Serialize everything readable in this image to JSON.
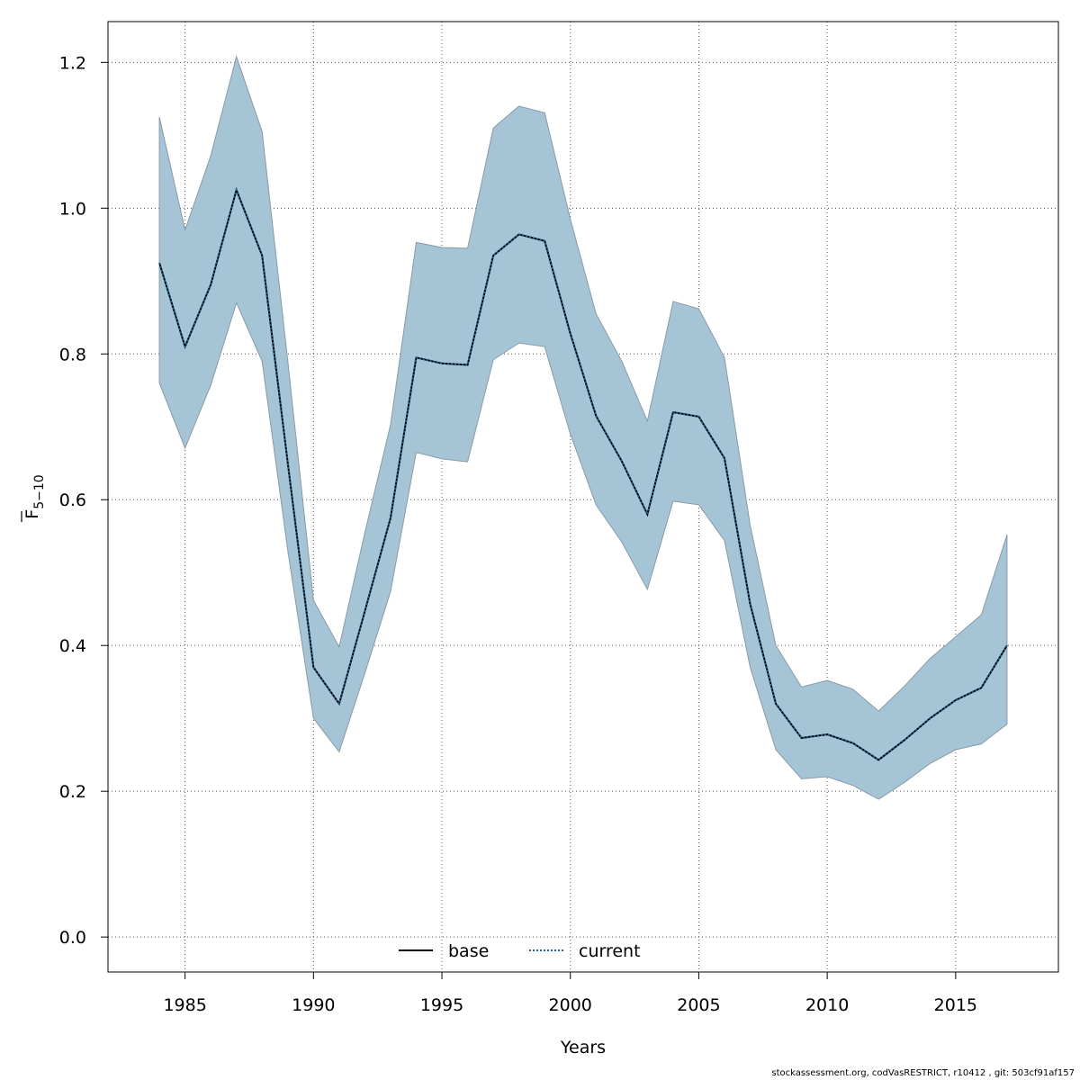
{
  "chart_data": {
    "type": "line",
    "xlabel": "Years",
    "ylabel_main": "F",
    "ylabel_sub": "5−10",
    "xlim": [
      1982,
      2019
    ],
    "ylim": [
      -0.048,
      1.256
    ],
    "x_ticks": [
      1985,
      1990,
      1995,
      2000,
      2005,
      2010,
      2015
    ],
    "y_ticks": [
      0.0,
      0.2,
      0.4,
      0.6,
      0.8,
      1.0,
      1.2
    ],
    "y_tick_labels": [
      "0.0",
      "0.2",
      "0.4",
      "0.6",
      "0.8",
      "1.0",
      "1.2"
    ],
    "grid": true,
    "legend_position": "bottom-center",
    "band_color": "#a5c4d6",
    "band_stroke": "#8a9aa6",
    "x": [
      1984,
      1985,
      1986,
      1987,
      1988,
      1989,
      1990,
      1991,
      1992,
      1993,
      1994,
      1995,
      1996,
      1997,
      1998,
      1999,
      2000,
      2001,
      2002,
      2003,
      2004,
      2005,
      2006,
      2007,
      2008,
      2009,
      2010,
      2011,
      2012,
      2013,
      2014,
      2015,
      2016,
      2017
    ],
    "upper": [
      1.125,
      0.97,
      1.072,
      1.208,
      1.105,
      0.79,
      0.462,
      0.398,
      0.555,
      0.703,
      0.953,
      0.946,
      0.945,
      1.11,
      1.14,
      1.131,
      0.985,
      0.855,
      0.79,
      0.708,
      0.872,
      0.862,
      0.795,
      0.565,
      0.4,
      0.343,
      0.352,
      0.34,
      0.31,
      0.344,
      0.382,
      0.412,
      0.442,
      0.552
    ],
    "lower": [
      0.76,
      0.671,
      0.757,
      0.87,
      0.79,
      0.53,
      0.3,
      0.254,
      0.362,
      0.474,
      0.665,
      0.656,
      0.652,
      0.792,
      0.815,
      0.81,
      0.69,
      0.593,
      0.542,
      0.477,
      0.598,
      0.593,
      0.544,
      0.37,
      0.257,
      0.217,
      0.22,
      0.208,
      0.189,
      0.212,
      0.238,
      0.257,
      0.265,
      0.292
    ],
    "series": [
      {
        "name": "base",
        "style": "solid",
        "color": "#000000",
        "values": [
          0.925,
          0.81,
          0.895,
          1.025,
          0.935,
          0.65,
          0.37,
          0.32,
          0.447,
          0.575,
          0.795,
          0.787,
          0.785,
          0.935,
          0.964,
          0.955,
          0.828,
          0.715,
          0.653,
          0.58,
          0.72,
          0.714,
          0.657,
          0.457,
          0.32,
          0.273,
          0.278,
          0.266,
          0.243,
          0.27,
          0.3,
          0.325,
          0.342,
          0.4
        ]
      },
      {
        "name": "current",
        "style": "dotted",
        "color": "#1f5f8b",
        "values": [
          0.925,
          0.81,
          0.895,
          1.025,
          0.935,
          0.65,
          0.37,
          0.32,
          0.447,
          0.575,
          0.795,
          0.787,
          0.785,
          0.935,
          0.964,
          0.955,
          0.828,
          0.715,
          0.653,
          0.58,
          0.72,
          0.714,
          0.657,
          0.457,
          0.32,
          0.273,
          0.278,
          0.266,
          0.243,
          0.27,
          0.3,
          0.325,
          0.342,
          0.4
        ]
      }
    ]
  },
  "legend": {
    "base": "base",
    "current": "current"
  },
  "footer": "stockassessment.org, codVasRESTRICT, r10412 , git: 503cf91af157"
}
